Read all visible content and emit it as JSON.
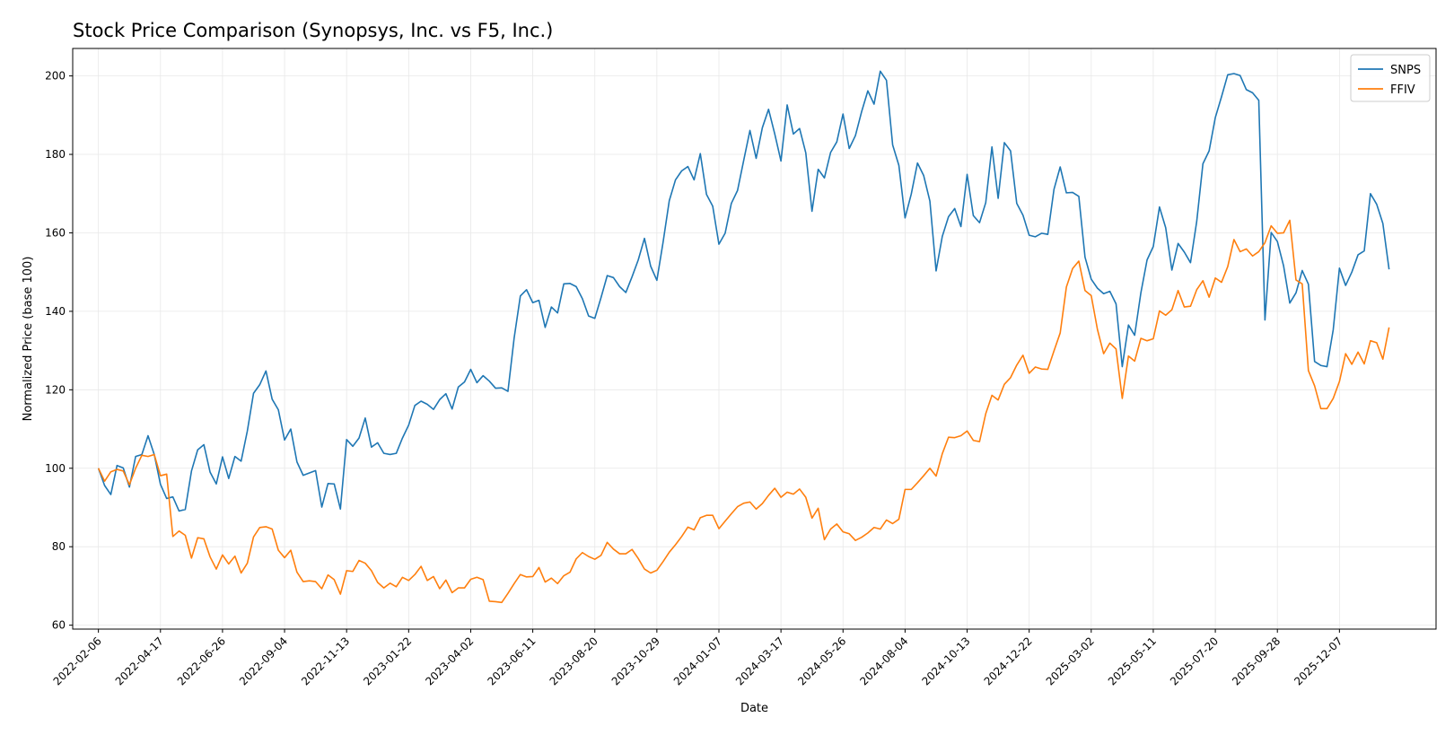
{
  "chart_data": {
    "type": "line",
    "title": "Stock Price Comparison (Synopsys, Inc. vs F5, Inc.)",
    "xlabel": "Date",
    "ylabel": "Normalized Price (base 100)",
    "ylim": [
      59,
      207
    ],
    "yticks": [
      60,
      80,
      100,
      120,
      140,
      160,
      180,
      200
    ],
    "xlim": [
      "2022-01-08",
      "2026-03-26"
    ],
    "xticks": [
      "2022-02-06",
      "2022-04-17",
      "2022-06-26",
      "2022-09-04",
      "2022-11-13",
      "2023-01-22",
      "2023-04-02",
      "2023-06-11",
      "2023-08-20",
      "2023-10-29",
      "2024-01-07",
      "2024-03-17",
      "2024-05-26",
      "2024-08-04",
      "2024-10-13",
      "2024-12-22",
      "2025-03-02",
      "2025-05-11",
      "2025-07-20",
      "2025-09-28",
      "2025-12-07"
    ],
    "grid": true,
    "legend_position": "top-right",
    "x_start": "2022-02-06",
    "x_step_days": 7,
    "series": [
      {
        "name": "SNPS",
        "color": "#1f77b4",
        "values": [
          100.0,
          95.6,
          93.3,
          100.7,
          100.1,
          95.2,
          103.0,
          103.5,
          108.3,
          103.5,
          95.9,
          92.3,
          92.7,
          89.1,
          89.5,
          99.3,
          104.7,
          106.0,
          99.0,
          96.0,
          102.9,
          97.4,
          103.0,
          101.8,
          109.5,
          119.1,
          121.3,
          124.8,
          117.6,
          114.9,
          107.2,
          110.0,
          101.6,
          98.2,
          98.8,
          99.4,
          90.1,
          96.1,
          96.0,
          89.6,
          107.3,
          105.6,
          107.7,
          112.8,
          105.4,
          106.5,
          103.8,
          103.5,
          103.8,
          107.7,
          111.0,
          116.0,
          117.1,
          116.3,
          115.0,
          117.5,
          119.0,
          115.1,
          120.7,
          122.0,
          125.2,
          121.8,
          123.6,
          122.2,
          120.4,
          120.5,
          119.6,
          133.2,
          143.9,
          145.5,
          142.2,
          142.8,
          135.9,
          141.1,
          139.6,
          147.0,
          147.1,
          146.3,
          143.2,
          138.8,
          138.2,
          143.5,
          149.1,
          148.6,
          146.3,
          144.8,
          148.8,
          153.1,
          158.6,
          151.5,
          147.9,
          157.6,
          168.2,
          173.5,
          175.8,
          176.9,
          173.5,
          180.2,
          169.8,
          166.8,
          157.1,
          159.9,
          167.5,
          170.8,
          178.5,
          186.1,
          179.0,
          186.8,
          191.5,
          185.2,
          178.3,
          192.6,
          185.2,
          186.6,
          180.4,
          165.5,
          176.2,
          174.0,
          180.5,
          183.2,
          190.3,
          181.5,
          184.8,
          190.9,
          196.2,
          192.8,
          201.2,
          198.9,
          182.4,
          177.2,
          163.8,
          169.9,
          177.8,
          174.6,
          168.1,
          150.3,
          159.1,
          164.1,
          166.2,
          161.6,
          174.9,
          164.4,
          162.6,
          167.7,
          181.9,
          168.8,
          183.0,
          180.9,
          167.5,
          164.5,
          159.4,
          159.0,
          159.9,
          159.6,
          171.1,
          176.8,
          170.2,
          170.3,
          169.3,
          153.8,
          148.2,
          145.9,
          144.5,
          145.1,
          141.9,
          125.9,
          136.5,
          133.9,
          144.7,
          153.1,
          156.5,
          166.6,
          161.3,
          150.5,
          157.3,
          155.1,
          152.4,
          162.9,
          177.6,
          180.9,
          189.4,
          194.7,
          200.3,
          200.6,
          200.1,
          196.5,
          195.7,
          193.8,
          137.8,
          160.1,
          157.8,
          151.6,
          142.1,
          144.7,
          150.4,
          146.9,
          127.2,
          126.2,
          125.9,
          135.3,
          151.0,
          146.6,
          150.0,
          154.4,
          155.4,
          170.0,
          167.3,
          162.4,
          150.7
        ]
      },
      {
        "name": "FFIV",
        "color": "#ff7f0e",
        "values": [
          100.0,
          96.7,
          99.1,
          99.7,
          99.3,
          95.8,
          100.0,
          103.3,
          103.0,
          103.5,
          98.1,
          98.5,
          82.6,
          84.0,
          82.9,
          77.1,
          82.3,
          82.0,
          77.4,
          74.3,
          77.9,
          75.6,
          77.6,
          73.3,
          75.8,
          82.5,
          84.9,
          85.1,
          84.5,
          79.1,
          77.2,
          79.1,
          73.5,
          71.1,
          71.3,
          71.1,
          69.3,
          72.8,
          71.6,
          67.9,
          73.9,
          73.7,
          76.5,
          75.8,
          73.9,
          70.9,
          69.5,
          70.7,
          69.8,
          72.2,
          71.4,
          72.9,
          75.0,
          71.4,
          72.4,
          69.3,
          71.5,
          68.3,
          69.5,
          69.5,
          71.7,
          72.2,
          71.6,
          66.1,
          66.0,
          65.8,
          68.1,
          70.6,
          72.9,
          72.3,
          72.4,
          74.7,
          71.0,
          72.0,
          70.6,
          72.6,
          73.5,
          76.9,
          78.5,
          77.5,
          76.8,
          77.8,
          81.1,
          79.4,
          78.2,
          78.2,
          79.3,
          77.0,
          74.3,
          73.3,
          74.0,
          76.2,
          78.6,
          80.5,
          82.6,
          85.0,
          84.3,
          87.4,
          88.0,
          88.0,
          84.6,
          86.5,
          88.4,
          90.2,
          91.1,
          91.4,
          89.6,
          91.0,
          93.1,
          94.9,
          92.6,
          93.9,
          93.4,
          94.7,
          92.6,
          87.3,
          89.8,
          81.8,
          84.5,
          85.8,
          83.8,
          83.3,
          81.6,
          82.4,
          83.5,
          84.9,
          84.5,
          86.8,
          85.9,
          87.0,
          94.6,
          94.6,
          96.3,
          98.1,
          100.0,
          98.0,
          103.7,
          107.9,
          107.8,
          108.3,
          109.5,
          107.1,
          106.8,
          113.9,
          118.6,
          117.4,
          121.4,
          123.1,
          126.3,
          128.8,
          124.2,
          125.8,
          125.3,
          125.2,
          129.9,
          134.5,
          146.2,
          150.9,
          152.8,
          145.3,
          144.0,
          135.4,
          129.2,
          131.9,
          130.4,
          117.8,
          128.6,
          127.3,
          133.1,
          132.5,
          133.0,
          140.1,
          139.0,
          140.4,
          145.3,
          141.1,
          141.3,
          145.5,
          147.8,
          143.6,
          148.5,
          147.4,
          151.4,
          158.3,
          155.2,
          155.9,
          154.1,
          155.2,
          157.5,
          161.8,
          159.9,
          160.0,
          163.2,
          148.0,
          147.0,
          124.9,
          121.0,
          115.2,
          115.2,
          117.8,
          122.1,
          129.2,
          126.5,
          129.6,
          126.6,
          132.5,
          132.0,
          127.8,
          135.9
        ]
      }
    ]
  }
}
